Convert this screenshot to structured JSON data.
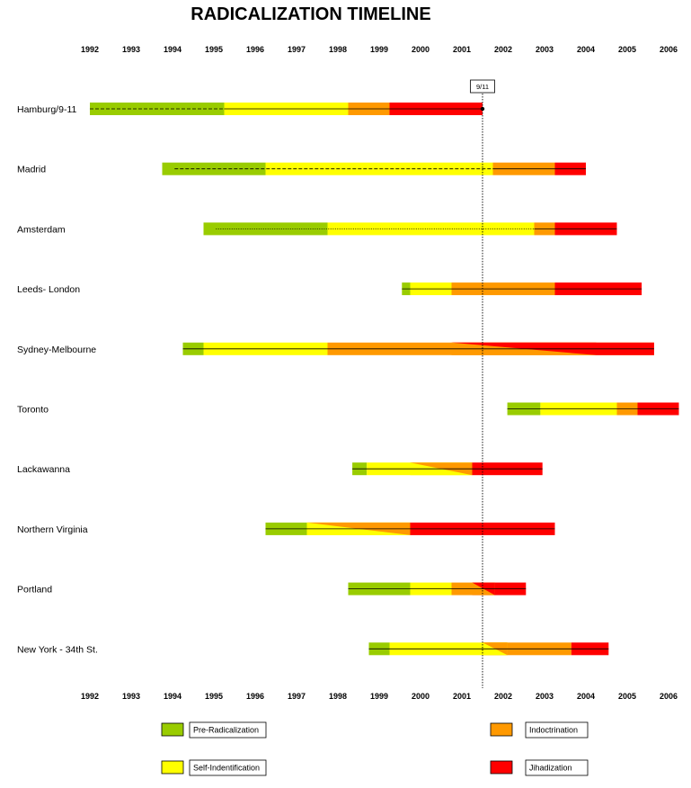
{
  "chart_data": {
    "type": "timeline",
    "title": "RADICALIZATION TIMELINE",
    "years": [
      "1992",
      "1993",
      "1994",
      "1995",
      "1996",
      "1997",
      "1998",
      "1999",
      "2000",
      "2001",
      "2002",
      "2003",
      "2004",
      "2005",
      "2006"
    ],
    "year_range": [
      1991.9,
      2006.1
    ],
    "event_marker": {
      "label": "9/11",
      "year": 2001.5
    },
    "phases": [
      {
        "key": "pre",
        "name": "Pre-Radicalization",
        "color": "#99cc00"
      },
      {
        "key": "self",
        "name": "Self-Indentification",
        "color": "#ffff00"
      },
      {
        "key": "indoc",
        "name": "Indoctrination",
        "color": "#ff9900"
      },
      {
        "key": "jihad",
        "name": "Jihadization",
        "color": "#ff0000"
      }
    ],
    "rows": [
      {
        "name": "Hamburg/9-11",
        "segments": [
          {
            "phase": "pre",
            "start": 1992.0,
            "end": 1995.25
          },
          {
            "phase": "self",
            "start": 1995.25,
            "end": 1998.25
          },
          {
            "phase": "indoc",
            "start": 1998.25,
            "end": 1999.25
          },
          {
            "phase": "jihad",
            "start": 1999.25,
            "end": 2001.5
          }
        ],
        "lines": [
          {
            "start": 1992.0,
            "end": 1995.25,
            "style": "dashed"
          },
          {
            "start": 1995.25,
            "end": 2001.5,
            "style": "solid"
          }
        ],
        "dot_year": 2001.5
      },
      {
        "name": "Madrid",
        "segments": [
          {
            "phase": "pre",
            "start": 1993.75,
            "end": 1996.25
          },
          {
            "phase": "self",
            "start": 1996.25,
            "end": 2001.75
          },
          {
            "phase": "indoc",
            "start": 2001.75,
            "end": 2003.25
          },
          {
            "phase": "jihad",
            "start": 2003.25,
            "end": 2004.0
          }
        ],
        "lines": [
          {
            "start": 1994.05,
            "end": 2001.75,
            "style": "dashed"
          },
          {
            "start": 2001.75,
            "end": 2004.0,
            "style": "solid"
          }
        ]
      },
      {
        "name": "Amsterdam",
        "segments": [
          {
            "phase": "pre",
            "start": 1994.75,
            "end": 1997.75
          },
          {
            "phase": "self",
            "start": 1997.75,
            "end": 2002.75
          },
          {
            "phase": "indoc",
            "start": 2002.75,
            "end": 2003.25
          },
          {
            "phase": "jihad",
            "start": 2003.25,
            "end": 2004.75
          }
        ],
        "lines": [
          {
            "start": 1995.05,
            "end": 2002.75,
            "style": "dotted"
          },
          {
            "start": 2002.75,
            "end": 2004.75,
            "style": "solid"
          }
        ]
      },
      {
        "name": "Leeds- London",
        "segments": [
          {
            "phase": "pre",
            "start": 1999.55,
            "end": 1999.75
          },
          {
            "phase": "self",
            "start": 1999.75,
            "end": 2000.75
          },
          {
            "phase": "indoc",
            "start": 2000.75,
            "end": 2003.25
          },
          {
            "phase": "jihad",
            "start": 2003.25,
            "end": 2005.35
          }
        ],
        "lines": [
          {
            "start": 1999.55,
            "end": 2005.35,
            "style": "solid"
          }
        ]
      },
      {
        "name": "Sydney-Melbourne",
        "segments": [
          {
            "phase": "pre",
            "start": 1994.25,
            "end": 1994.75
          },
          {
            "phase": "self",
            "start": 1994.75,
            "end": 1997.75
          },
          {
            "phase": "indoc",
            "start": 1997.75,
            "end": 2005.65
          },
          {
            "phase": "jihad",
            "start": 2004.25,
            "end": 2005.65
          }
        ],
        "wedges": [
          {
            "from_phase": "indoc",
            "to_phase": "jihad",
            "start": 2000.75,
            "end": 2004.25
          }
        ],
        "lines": [
          {
            "start": 1994.25,
            "end": 2005.65,
            "style": "solid"
          }
        ]
      },
      {
        "name": "Toronto",
        "segments": [
          {
            "phase": "pre",
            "start": 2002.1,
            "end": 2002.9
          },
          {
            "phase": "self",
            "start": 2002.9,
            "end": 2004.75
          },
          {
            "phase": "indoc",
            "start": 2004.75,
            "end": 2005.25
          },
          {
            "phase": "jihad",
            "start": 2005.25,
            "end": 2006.25
          }
        ],
        "lines": [
          {
            "start": 2002.1,
            "end": 2006.25,
            "style": "solid"
          }
        ]
      },
      {
        "name": "Lackawanna",
        "segments": [
          {
            "phase": "pre",
            "start": 1998.35,
            "end": 1998.7
          },
          {
            "phase": "self",
            "start": 1998.7,
            "end": 2001.25
          },
          {
            "phase": "jihad",
            "start": 2001.25,
            "end": 2002.95
          }
        ],
        "wedges": [
          {
            "from_phase": "self",
            "to_phase": "indoc",
            "start": 1999.75,
            "end": 2001.25
          }
        ],
        "lines": [
          {
            "start": 1998.35,
            "end": 2002.95,
            "style": "solid"
          }
        ]
      },
      {
        "name": "Northern Virginia",
        "segments": [
          {
            "phase": "pre",
            "start": 1996.25,
            "end": 1997.25
          },
          {
            "phase": "self",
            "start": 1997.25,
            "end": 1999.75
          },
          {
            "phase": "jihad",
            "start": 1999.75,
            "end": 2003.25
          }
        ],
        "wedges": [
          {
            "from_phase": "self",
            "to_phase": "indoc",
            "start": 1997.25,
            "end": 1999.75
          }
        ],
        "lines": [
          {
            "start": 1996.25,
            "end": 2003.25,
            "style": "solid"
          }
        ]
      },
      {
        "name": "Portland",
        "segments": [
          {
            "phase": "pre",
            "start": 1998.25,
            "end": 1999.75
          },
          {
            "phase": "self",
            "start": 1999.75,
            "end": 2000.75
          },
          {
            "phase": "indoc",
            "start": 2000.75,
            "end": 2001.25
          },
          {
            "phase": "jihad",
            "start": 2001.25,
            "end": 2002.55
          }
        ],
        "wedges": [
          {
            "from_phase": "indoc",
            "to_phase": "jihad",
            "start": 2001.25,
            "end": 2001.8
          }
        ],
        "lines": [
          {
            "start": 1998.25,
            "end": 2002.55,
            "style": "solid"
          }
        ]
      },
      {
        "name": "New York - 34th St.",
        "segments": [
          {
            "phase": "pre",
            "start": 1998.75,
            "end": 1999.25
          },
          {
            "phase": "self",
            "start": 1999.25,
            "end": 2002.1
          },
          {
            "phase": "indoc",
            "start": 2001.5,
            "end": 2003.65
          },
          {
            "phase": "jihad",
            "start": 2003.65,
            "end": 2004.55
          }
        ],
        "wedges": [
          {
            "from_phase": "self",
            "to_phase": "indoc",
            "start": 2001.5,
            "end": 2002.1
          }
        ],
        "lines": [
          {
            "start": 1998.75,
            "end": 2004.55,
            "style": "solid"
          }
        ]
      }
    ],
    "legend": [
      {
        "phase": "pre",
        "label": "Pre-Radicalization"
      },
      {
        "phase": "self",
        "label": "Self-Indentification"
      },
      {
        "phase": "indoc",
        "label": "Indoctrination"
      },
      {
        "phase": "jihad",
        "label": "Jihadization"
      }
    ]
  }
}
